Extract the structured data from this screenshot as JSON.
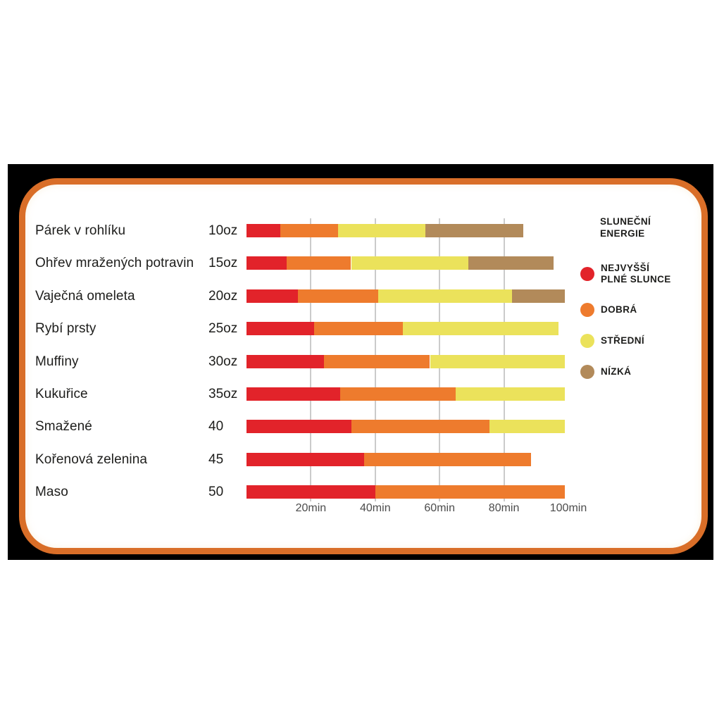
{
  "page": {
    "background": "#ffffff"
  },
  "frame": {
    "mat_color": "#000000",
    "border_color": "#d96e28",
    "panel_color": "#ffffff"
  },
  "chart_data": {
    "type": "bar",
    "orientation": "horizontal-stacked",
    "unit": "minutes",
    "x_max": 100,
    "grid_on": true,
    "grid_values": [
      20,
      40,
      60,
      80
    ],
    "x_ticks": [
      {
        "value": 20,
        "label": "20min"
      },
      {
        "value": 40,
        "label": "40min"
      },
      {
        "value": 60,
        "label": "60min"
      },
      {
        "value": 80,
        "label": "80min"
      },
      {
        "value": 100,
        "label": "100min"
      }
    ],
    "gridline_color": "#cbcbcb",
    "rows": [
      {
        "label": "Párek v rohlíku",
        "size": "10oz",
        "segments": [
          {
            "energy": "nejvyssi",
            "end": 10.5
          },
          {
            "energy": "dobra",
            "end": 28.5
          },
          {
            "energy": "stredni",
            "end": 55.5
          },
          {
            "energy": "nizka",
            "end": 86
          }
        ]
      },
      {
        "label": "Ohřev mražených potravin",
        "size": "15oz",
        "segments": [
          {
            "energy": "nejvyssi",
            "end": 12.5
          },
          {
            "energy": "dobra",
            "end": 32.5
          },
          {
            "energy": "stredni",
            "end": 69
          },
          {
            "energy": "nizka",
            "end": 95.5
          }
        ]
      },
      {
        "label": "Vaječná omeleta",
        "size": "20oz",
        "segments": [
          {
            "energy": "nejvyssi",
            "end": 16
          },
          {
            "energy": "dobra",
            "end": 41
          },
          {
            "energy": "stredni",
            "end": 82.5
          },
          {
            "energy": "nizka",
            "end": 99
          }
        ]
      },
      {
        "label": "Rybí prsty",
        "size": "25oz",
        "segments": [
          {
            "energy": "nejvyssi",
            "end": 21
          },
          {
            "energy": "dobra",
            "end": 48.5
          },
          {
            "energy": "stredni",
            "end": 97
          }
        ]
      },
      {
        "label": "Muffiny",
        "size": "30oz",
        "segments": [
          {
            "energy": "nejvyssi",
            "end": 24
          },
          {
            "energy": "dobra",
            "end": 57
          },
          {
            "energy": "stredni",
            "end": 99
          }
        ]
      },
      {
        "label": "Kukuřice",
        "size": "35oz",
        "segments": [
          {
            "energy": "nejvyssi",
            "end": 29
          },
          {
            "energy": "dobra",
            "end": 65
          },
          {
            "energy": "stredni",
            "end": 99
          }
        ]
      },
      {
        "label": "Smažené",
        "size": "40",
        "segments": [
          {
            "energy": "nejvyssi",
            "end": 32.5
          },
          {
            "energy": "dobra",
            "end": 75.5
          },
          {
            "energy": "stredni",
            "end": 99
          }
        ]
      },
      {
        "label": "Kořenová zelenina",
        "size": "45",
        "segments": [
          {
            "energy": "nejvyssi",
            "end": 36.5
          },
          {
            "energy": "dobra",
            "end": 88.5
          }
        ]
      },
      {
        "label": "Maso",
        "size": "50",
        "segments": [
          {
            "energy": "nejvyssi",
            "end": 40
          },
          {
            "energy": "dobra",
            "end": 99
          }
        ]
      }
    ],
    "legend": {
      "position": "right",
      "title_lines": [
        "SLUNEČNÍ",
        "ENERGIE"
      ],
      "items": [
        {
          "key": "nejvyssi",
          "label_lines": [
            "NEJVYŠŠÍ",
            "PLNÉ SLUNCE"
          ],
          "color": "#e2232a"
        },
        {
          "key": "dobra",
          "label_lines": [
            "DOBRÁ"
          ],
          "color": "#ee7b2d"
        },
        {
          "key": "stredni",
          "label_lines": [
            "STŘEDNÍ"
          ],
          "color": "#ebe25b"
        },
        {
          "key": "nizka",
          "label_lines": [
            "NÍZKÁ"
          ],
          "color": "#b28a5a"
        }
      ]
    }
  }
}
